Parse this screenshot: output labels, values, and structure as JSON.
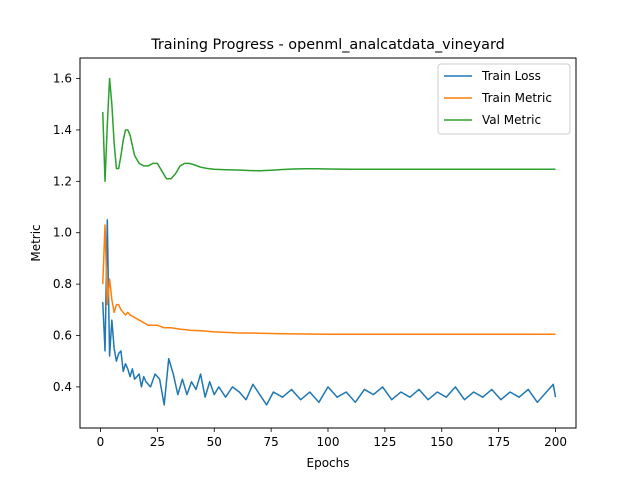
{
  "chart_data": {
    "type": "line",
    "title": "Training Progress - openml_analcatdata_vineyard",
    "xlabel": "Epochs",
    "ylabel": "Metric",
    "xlim": [
      -9,
      209
    ],
    "ylim": [
      0.24,
      1.68
    ],
    "xticks": [
      0,
      25,
      50,
      75,
      100,
      125,
      150,
      175,
      200
    ],
    "yticks": [
      0.4,
      0.6,
      0.8,
      1.0,
      1.2,
      1.4,
      1.6
    ],
    "xtick_labels": [
      "0",
      "25",
      "50",
      "75",
      "100",
      "125",
      "150",
      "175",
      "200"
    ],
    "ytick_labels": [
      "0.4",
      "0.6",
      "0.8",
      "1.0",
      "1.2",
      "1.4",
      "1.6"
    ],
    "grid": false,
    "legend_position": "top-right",
    "series": [
      {
        "name": "Train Loss",
        "color": "#1f77b4",
        "points": [
          [
            1,
            0.73
          ],
          [
            2,
            0.54
          ],
          [
            3,
            1.05
          ],
          [
            4,
            0.52
          ],
          [
            5,
            0.66
          ],
          [
            6,
            0.55
          ],
          [
            7,
            0.5
          ],
          [
            8,
            0.53
          ],
          [
            9,
            0.54
          ],
          [
            10,
            0.46
          ],
          [
            11,
            0.49
          ],
          [
            12,
            0.47
          ],
          [
            13,
            0.44
          ],
          [
            14,
            0.47
          ],
          [
            15,
            0.43
          ],
          [
            16,
            0.44
          ],
          [
            17,
            0.45
          ],
          [
            18,
            0.4
          ],
          [
            19,
            0.44
          ],
          [
            20,
            0.42
          ],
          [
            22,
            0.4
          ],
          [
            24,
            0.45
          ],
          [
            26,
            0.43
          ],
          [
            28,
            0.33
          ],
          [
            30,
            0.51
          ],
          [
            32,
            0.45
          ],
          [
            34,
            0.37
          ],
          [
            36,
            0.43
          ],
          [
            38,
            0.37
          ],
          [
            40,
            0.42
          ],
          [
            42,
            0.39
          ],
          [
            44,
            0.45
          ],
          [
            46,
            0.36
          ],
          [
            48,
            0.42
          ],
          [
            50,
            0.37
          ],
          [
            52,
            0.4
          ],
          [
            55,
            0.36
          ],
          [
            58,
            0.4
          ],
          [
            61,
            0.38
          ],
          [
            64,
            0.35
          ],
          [
            67,
            0.41
          ],
          [
            70,
            0.37
          ],
          [
            73,
            0.33
          ],
          [
            76,
            0.38
          ],
          [
            80,
            0.36
          ],
          [
            84,
            0.39
          ],
          [
            88,
            0.35
          ],
          [
            92,
            0.38
          ],
          [
            96,
            0.34
          ],
          [
            100,
            0.4
          ],
          [
            104,
            0.36
          ],
          [
            108,
            0.38
          ],
          [
            112,
            0.34
          ],
          [
            116,
            0.39
          ],
          [
            120,
            0.37
          ],
          [
            124,
            0.4
          ],
          [
            128,
            0.35
          ],
          [
            132,
            0.38
          ],
          [
            136,
            0.36
          ],
          [
            140,
            0.39
          ],
          [
            144,
            0.35
          ],
          [
            148,
            0.38
          ],
          [
            152,
            0.36
          ],
          [
            156,
            0.4
          ],
          [
            160,
            0.35
          ],
          [
            164,
            0.38
          ],
          [
            168,
            0.36
          ],
          [
            172,
            0.39
          ],
          [
            176,
            0.35
          ],
          [
            180,
            0.38
          ],
          [
            184,
            0.36
          ],
          [
            188,
            0.39
          ],
          [
            192,
            0.34
          ],
          [
            196,
            0.38
          ],
          [
            199,
            0.41
          ],
          [
            200,
            0.36
          ]
        ]
      },
      {
        "name": "Train Metric",
        "color": "#ff7f0e",
        "points": [
          [
            1,
            0.8
          ],
          [
            2,
            1.03
          ],
          [
            3,
            0.72
          ],
          [
            4,
            0.82
          ],
          [
            5,
            0.74
          ],
          [
            6,
            0.69
          ],
          [
            7,
            0.72
          ],
          [
            8,
            0.72
          ],
          [
            9,
            0.7
          ],
          [
            10,
            0.69
          ],
          [
            11,
            0.68
          ],
          [
            12,
            0.69
          ],
          [
            13,
            0.68
          ],
          [
            15,
            0.67
          ],
          [
            17,
            0.66
          ],
          [
            19,
            0.65
          ],
          [
            21,
            0.64
          ],
          [
            23,
            0.64
          ],
          [
            25,
            0.64
          ],
          [
            28,
            0.63
          ],
          [
            31,
            0.63
          ],
          [
            35,
            0.625
          ],
          [
            40,
            0.62
          ],
          [
            45,
            0.618
          ],
          [
            50,
            0.614
          ],
          [
            55,
            0.612
          ],
          [
            60,
            0.61
          ],
          [
            70,
            0.609
          ],
          [
            80,
            0.607
          ],
          [
            90,
            0.606
          ],
          [
            100,
            0.605
          ],
          [
            120,
            0.605
          ],
          [
            150,
            0.605
          ],
          [
            175,
            0.605
          ],
          [
            200,
            0.605
          ]
        ]
      },
      {
        "name": "Val Metric",
        "color": "#2ca02c",
        "points": [
          [
            1,
            1.47
          ],
          [
            2,
            1.2
          ],
          [
            3,
            1.42
          ],
          [
            4,
            1.6
          ],
          [
            5,
            1.5
          ],
          [
            6,
            1.35
          ],
          [
            7,
            1.25
          ],
          [
            8,
            1.25
          ],
          [
            9,
            1.3
          ],
          [
            10,
            1.36
          ],
          [
            11,
            1.4
          ],
          [
            12,
            1.4
          ],
          [
            13,
            1.38
          ],
          [
            14,
            1.34
          ],
          [
            15,
            1.3
          ],
          [
            17,
            1.27
          ],
          [
            19,
            1.26
          ],
          [
            21,
            1.26
          ],
          [
            23,
            1.27
          ],
          [
            25,
            1.27
          ],
          [
            27,
            1.24
          ],
          [
            29,
            1.21
          ],
          [
            31,
            1.21
          ],
          [
            33,
            1.23
          ],
          [
            35,
            1.26
          ],
          [
            37,
            1.27
          ],
          [
            39,
            1.27
          ],
          [
            41,
            1.265
          ],
          [
            44,
            1.255
          ],
          [
            47,
            1.25
          ],
          [
            50,
            1.247
          ],
          [
            55,
            1.245
          ],
          [
            60,
            1.244
          ],
          [
            65,
            1.242
          ],
          [
            70,
            1.241
          ],
          [
            75,
            1.243
          ],
          [
            80,
            1.246
          ],
          [
            85,
            1.248
          ],
          [
            90,
            1.249
          ],
          [
            95,
            1.249
          ],
          [
            100,
            1.248
          ],
          [
            110,
            1.247
          ],
          [
            120,
            1.247
          ],
          [
            140,
            1.247
          ],
          [
            160,
            1.247
          ],
          [
            180,
            1.247
          ],
          [
            200,
            1.247
          ]
        ]
      }
    ]
  }
}
